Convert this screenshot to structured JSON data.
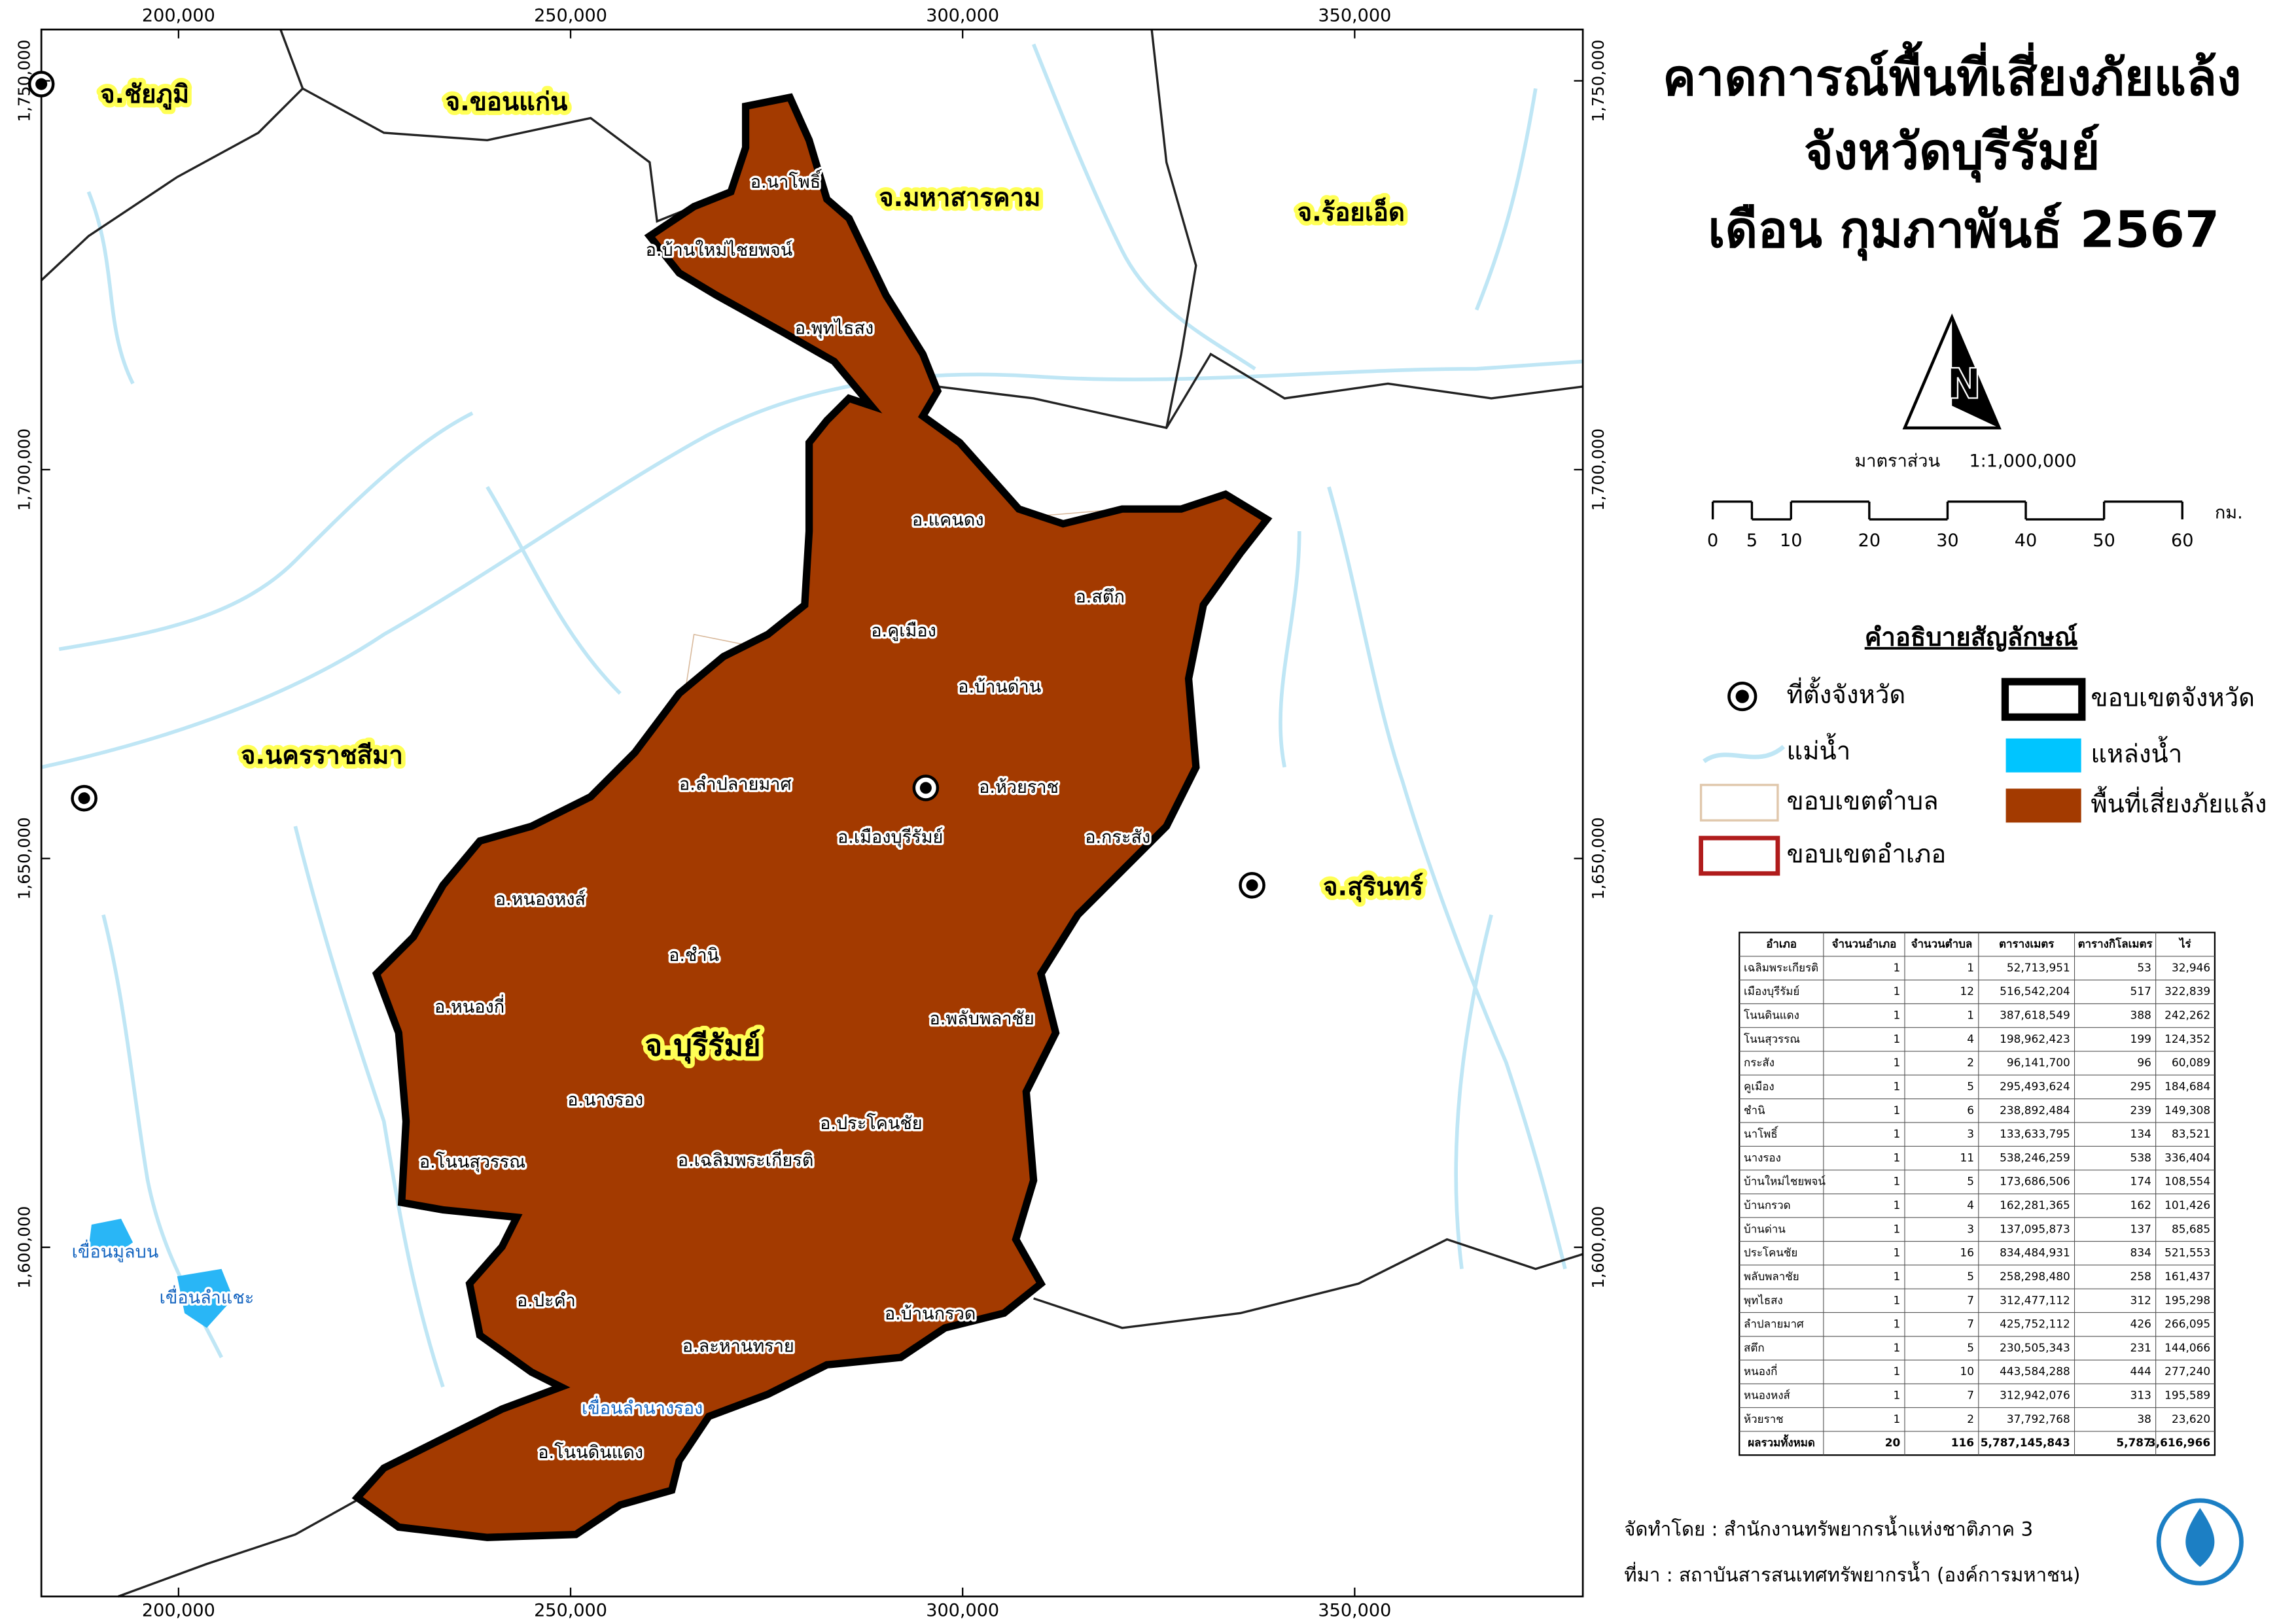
{
  "title": [
    "คาดการณ์พื้นที่เสี่ยงภัยแล้ง",
    "จังหวัดบุรีรัมย์",
    "เดือน กุมภาพันธ์ 2567"
  ],
  "map": {
    "xlim": [
      182500,
      379100
    ],
    "ylim": [
      1555100,
      1756600
    ],
    "xticks": [
      {
        "value": 200000,
        "label": "200,000"
      },
      {
        "value": 250000,
        "label": "250,000"
      },
      {
        "value": 300000,
        "label": "300,000"
      },
      {
        "value": 350000,
        "label": "350,000"
      }
    ],
    "yticks": [
      {
        "value": 1600000,
        "label": "1,600,000"
      },
      {
        "value": 1650000,
        "label": "1,650,000"
      },
      {
        "value": 1700000,
        "label": "1,700,000"
      },
      {
        "value": 1750000,
        "label": "1,750,000"
      }
    ],
    "provinces": [
      "จ.ชัยภูมิ",
      "จ.ขอนแก่น",
      "จ.มหาสารคาม",
      "จ.ร้อยเอ็ด",
      "จ.นครราชสีมา",
      "จ.สุรินทร์",
      "จ.บุรีรัมย์"
    ],
    "districts": [
      "อ.นาโพธิ์",
      "อ.บ้านใหม่ไชยพจน์",
      "อ.พุทไธสง",
      "อ.แคนดง",
      "อ.สตึก",
      "อ.คูเมือง",
      "อ.บ้านด่าน",
      "อ.ลำปลายมาศ",
      "อ.ห้วยราช",
      "อ.เมืองบุรีรัมย์",
      "อ.กระสัง",
      "อ.หนองหงส์",
      "อ.ชำนิ",
      "อ.หนองกี่",
      "อ.พลับพลาชัย",
      "อ.นางรอง",
      "อ.ประโคนชัย",
      "อ.โนนสุวรรณ",
      "อ.เฉลิมพระเกียรติ",
      "อ.ปะคำ",
      "อ.ละหานทราย",
      "อ.บ้านกรวด",
      "อ.โนนดินแดง"
    ],
    "reservoirs": [
      "เขื่อนมูลบน",
      "เขื่อนลำแชะ",
      "เขื่อนลำนางรอง"
    ]
  },
  "north_arrow": "N",
  "scale": {
    "label": "มาตราส่วน",
    "ratio": "1:1,000,000",
    "ticks": [
      0,
      5,
      10,
      20,
      30,
      40,
      50,
      60
    ],
    "unit": "กม."
  },
  "legend": {
    "title": "คำอธิบายสัญลักษณ์",
    "items": [
      "ที่ตั้งจังหวัด",
      "แม่น้ำ",
      "ขอบเขตตำบล",
      "ขอบเขตอำเภอ",
      "ขอบเขตจังหวัด",
      "แหล่งน้ำ",
      "พื้นที่เสี่ยงภัยแล้ง"
    ]
  },
  "table": {
    "header": [
      "อำเภอ",
      "จำนวนอำเภอ",
      "จำนวนตำบล",
      "ตารางเมตร",
      "ตารางกิโลเมตร",
      "ไร่"
    ],
    "rows": [
      [
        "เฉลิมพระเกียรติ",
        "1",
        "1",
        "52,713,951",
        "53",
        "32,946"
      ],
      [
        "เมืองบุรีรัมย์",
        "1",
        "12",
        "516,542,204",
        "517",
        "322,839"
      ],
      [
        "โนนดินแดง",
        "1",
        "1",
        "387,618,549",
        "388",
        "242,262"
      ],
      [
        "โนนสุวรรณ",
        "1",
        "4",
        "198,962,423",
        "199",
        "124,352"
      ],
      [
        "กระสัง",
        "1",
        "2",
        "96,141,700",
        "96",
        "60,089"
      ],
      [
        "คูเมือง",
        "1",
        "5",
        "295,493,624",
        "295",
        "184,684"
      ],
      [
        "ชำนิ",
        "1",
        "6",
        "238,892,484",
        "239",
        "149,308"
      ],
      [
        "นาโพธิ์",
        "1",
        "3",
        "133,633,795",
        "134",
        "83,521"
      ],
      [
        "นางรอง",
        "1",
        "11",
        "538,246,259",
        "538",
        "336,404"
      ],
      [
        "บ้านใหม่ไชยพจน์",
        "1",
        "5",
        "173,686,506",
        "174",
        "108,554"
      ],
      [
        "บ้านกรวด",
        "1",
        "4",
        "162,281,365",
        "162",
        "101,426"
      ],
      [
        "บ้านด่าน",
        "1",
        "3",
        "137,095,873",
        "137",
        "85,685"
      ],
      [
        "ประโคนชัย",
        "1",
        "16",
        "834,484,931",
        "834",
        "521,553"
      ],
      [
        "พลับพลาชัย",
        "1",
        "5",
        "258,298,480",
        "258",
        "161,437"
      ],
      [
        "พุทไธสง",
        "1",
        "7",
        "312,477,112",
        "312",
        "195,298"
      ],
      [
        "ลำปลายมาศ",
        "1",
        "7",
        "425,752,112",
        "426",
        "266,095"
      ],
      [
        "สตึก",
        "1",
        "5",
        "230,505,343",
        "231",
        "144,066"
      ],
      [
        "หนองกี่",
        "1",
        "10",
        "443,584,288",
        "444",
        "277,240"
      ],
      [
        "หนองหงส์",
        "1",
        "7",
        "312,942,076",
        "313",
        "195,589"
      ],
      [
        "ห้วยราช",
        "1",
        "2",
        "37,792,768",
        "38",
        "23,620"
      ],
      [
        "ผลรวมทั้งหมด",
        "20",
        "116",
        "5,787,145,843",
        "5,787",
        "3,616,966"
      ]
    ]
  },
  "credits": {
    "made_by": "จัดทำโดย : สำนักงานทรัพยากรน้ำแห่งชาติภาค 3",
    "source": "ที่มา : สถาบันสารสนเทศทรัพยากรน้ำ (องค์การมหาชน)"
  }
}
